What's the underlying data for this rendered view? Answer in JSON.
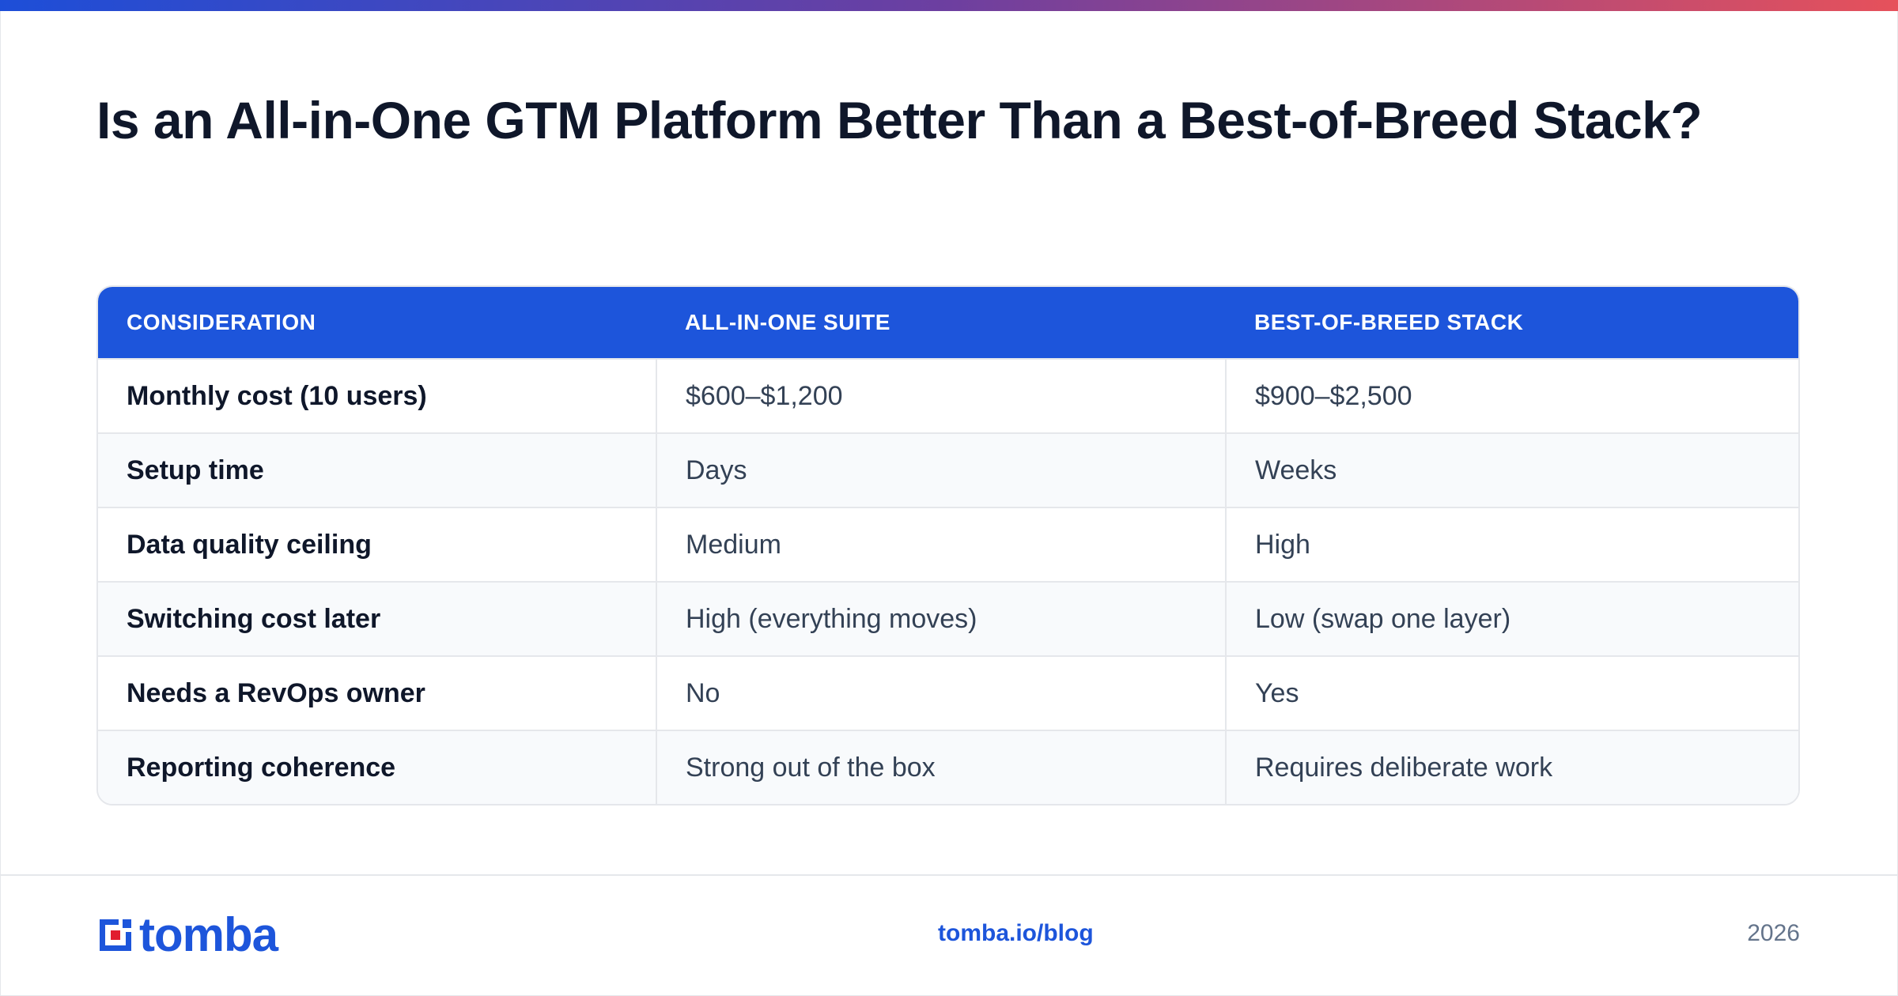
{
  "header": {
    "title": "Is an All-in-One GTM Platform Better Than a Best-of-Breed Stack?",
    "accent_gradient": [
      "#1d4ed8",
      "#6d3fa0",
      "#e6515b"
    ]
  },
  "table": {
    "columns": [
      "CONSIDERATION",
      "ALL-IN-ONE SUITE",
      "BEST-OF-BREED STACK"
    ],
    "header_color": "#1d55db",
    "rows": [
      [
        "Monthly cost (10 users)",
        "$600–$1,200",
        "$900–$2,500"
      ],
      [
        "Setup time",
        "Days",
        "Weeks"
      ],
      [
        "Data quality ceiling",
        "Medium",
        "High"
      ],
      [
        "Switching cost later",
        "High (everything moves)",
        "Low (swap one layer)"
      ],
      [
        "Needs a RevOps owner",
        "No",
        "Yes"
      ],
      [
        "Reporting coherence",
        "Strong out of the box",
        "Requires deliberate work"
      ]
    ]
  },
  "footer": {
    "logo_text": "tomba",
    "logo_icon": "tomba-logo-icon",
    "link": "tomba.io/blog",
    "year": "2026",
    "brand_color": "#1d55db",
    "logo_accent_color": "#e11d2e"
  }
}
